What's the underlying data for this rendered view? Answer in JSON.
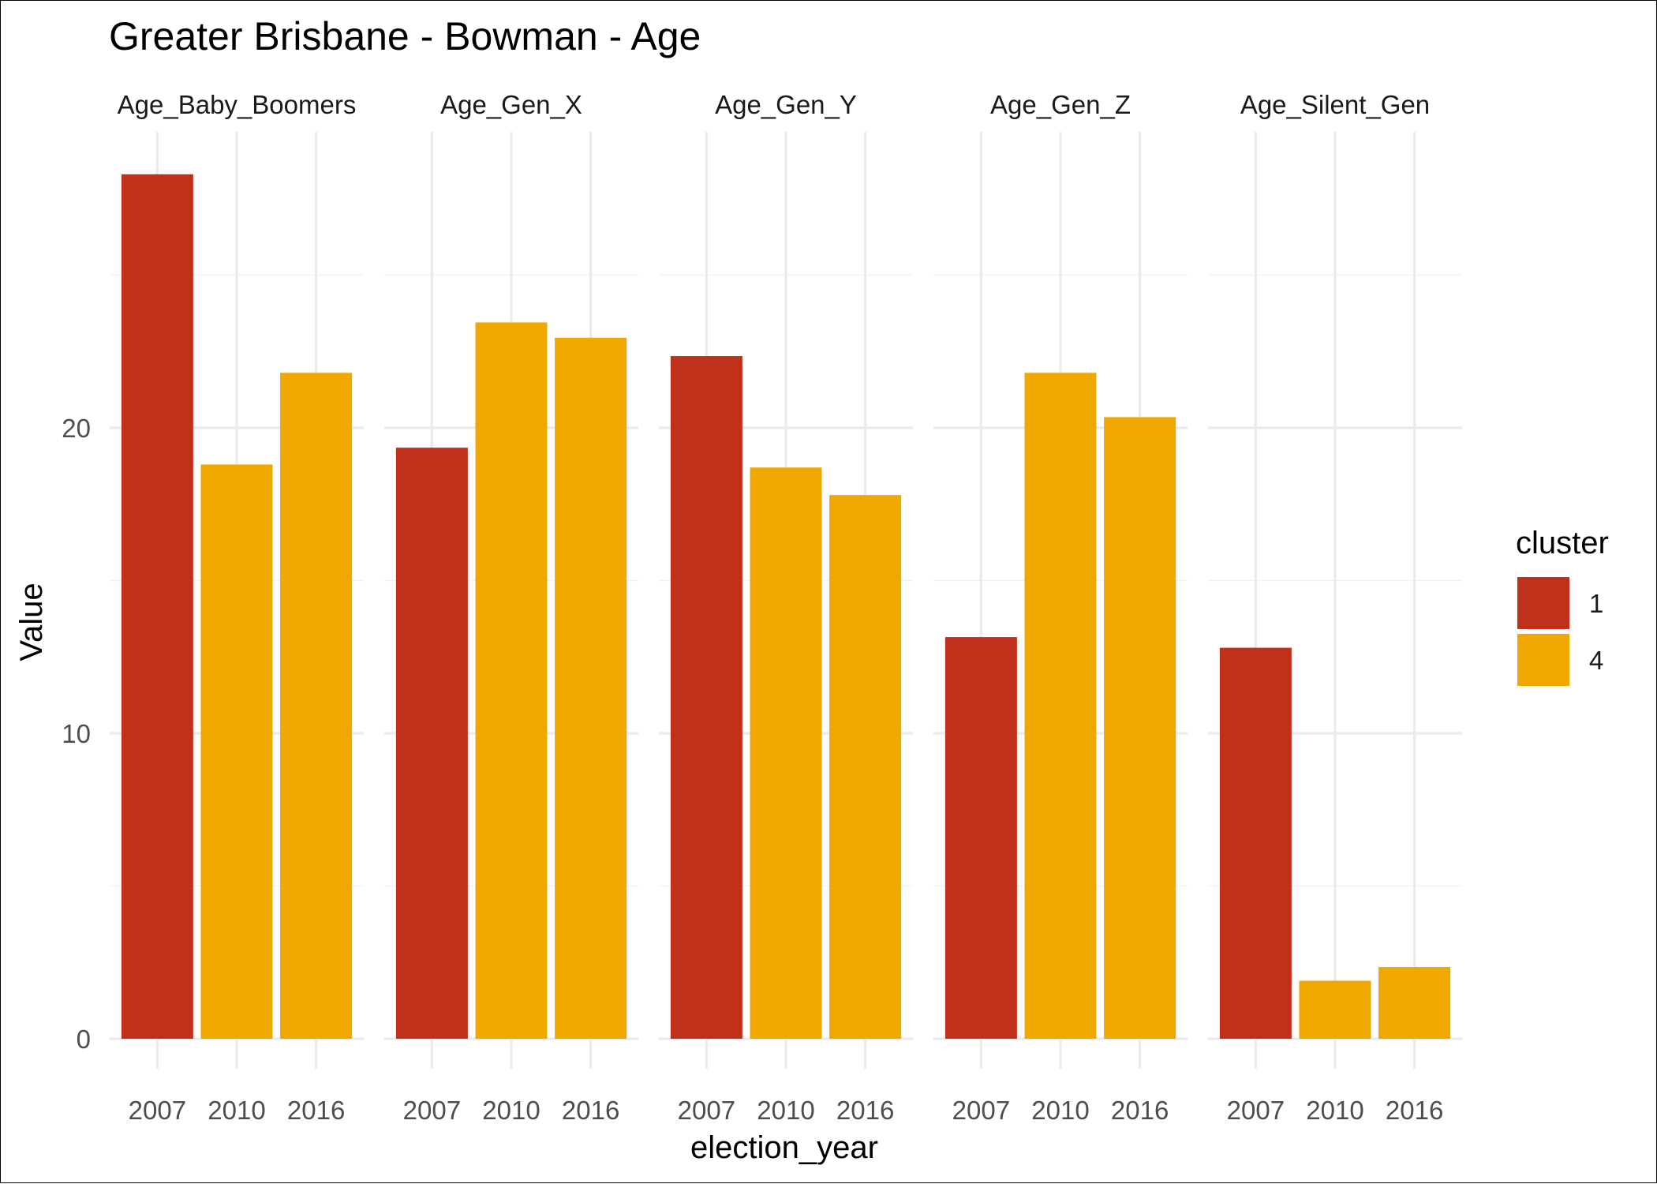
{
  "chart_data": {
    "type": "bar",
    "title": "Greater Brisbane - Bowman - Age",
    "xlabel": "election_year",
    "ylabel": "Value",
    "ylim": [
      0,
      28.5
    ],
    "yticks": [
      0,
      10,
      20
    ],
    "grid": true,
    "categories": [
      "2007",
      "2010",
      "2016"
    ],
    "legend": {
      "title": "cluster",
      "position": "right",
      "entries": [
        {
          "label": "1",
          "color": "#C0301A"
        },
        {
          "label": "4",
          "color": "#F0A800"
        }
      ]
    },
    "facets": [
      {
        "name": "Age_Baby_Boomers",
        "bars": [
          {
            "x": "2007",
            "value": 28.3,
            "cluster": "1"
          },
          {
            "x": "2010",
            "value": 18.8,
            "cluster": "4"
          },
          {
            "x": "2016",
            "value": 21.8,
            "cluster": "4"
          }
        ]
      },
      {
        "name": "Age_Gen_X",
        "bars": [
          {
            "x": "2007",
            "value": 19.35,
            "cluster": "1"
          },
          {
            "x": "2010",
            "value": 23.45,
            "cluster": "4"
          },
          {
            "x": "2016",
            "value": 22.95,
            "cluster": "4"
          }
        ]
      },
      {
        "name": "Age_Gen_Y",
        "bars": [
          {
            "x": "2007",
            "value": 22.35,
            "cluster": "1"
          },
          {
            "x": "2010",
            "value": 18.7,
            "cluster": "4"
          },
          {
            "x": "2016",
            "value": 17.8,
            "cluster": "4"
          }
        ]
      },
      {
        "name": "Age_Gen_Z",
        "bars": [
          {
            "x": "2007",
            "value": 13.15,
            "cluster": "1"
          },
          {
            "x": "2010",
            "value": 21.8,
            "cluster": "4"
          },
          {
            "x": "2016",
            "value": 20.35,
            "cluster": "4"
          }
        ]
      },
      {
        "name": "Age_Silent_Gen",
        "bars": [
          {
            "x": "2007",
            "value": 12.8,
            "cluster": "1"
          },
          {
            "x": "2010",
            "value": 1.9,
            "cluster": "4"
          },
          {
            "x": "2016",
            "value": 2.35,
            "cluster": "4"
          }
        ]
      }
    ]
  }
}
